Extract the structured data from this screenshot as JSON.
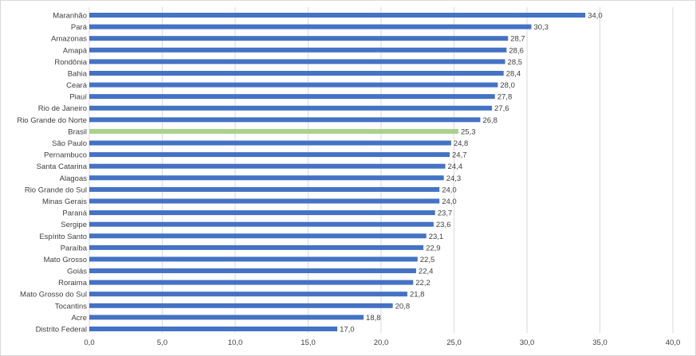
{
  "chart_data": {
    "type": "bar",
    "orientation": "horizontal",
    "categories": [
      "Maranhão",
      "Pará",
      "Amazonas",
      "Amapá",
      "Rondônia",
      "Bahia",
      "Ceará",
      "Piauí",
      "Rio de Janeiro",
      "Rio Grande do Norte",
      "Brasil",
      "São Paulo",
      "Pernambuco",
      "Santa Catarina",
      "Alagoas",
      "Rio Grande do Sul",
      "Minas Gerais",
      "Paraná",
      "Sergipe",
      "Espírito Santo",
      "Paraíba",
      "Mato Grosso",
      "Goiás",
      "Roraima",
      "Mato Grosso do Sul",
      "Tocantins",
      "Acre",
      "Distrito Federal"
    ],
    "values": [
      34.0,
      30.3,
      28.7,
      28.6,
      28.5,
      28.4,
      28.0,
      27.8,
      27.6,
      26.8,
      25.3,
      24.8,
      24.7,
      24.4,
      24.3,
      24.0,
      24.0,
      23.7,
      23.6,
      23.1,
      22.9,
      22.5,
      22.4,
      22.2,
      21.8,
      20.8,
      18.8,
      17.0
    ],
    "value_labels": [
      "34,0",
      "30,3",
      "28,7",
      "28,6",
      "28,5",
      "28,4",
      "28,0",
      "27,8",
      "27,6",
      "26,8",
      "25,3",
      "24,8",
      "24,7",
      "24,4",
      "24,3",
      "24,0",
      "24,0",
      "23,7",
      "23,6",
      "23,1",
      "22,9",
      "22,5",
      "22,4",
      "22,2",
      "21,8",
      "20,8",
      "18,8",
      "17,0"
    ],
    "highlight_category": "Brasil",
    "xlim": [
      0,
      40
    ],
    "x_ticks": [
      0,
      5,
      10,
      15,
      20,
      25,
      30,
      35,
      40
    ],
    "x_tick_labels": [
      "0,0",
      "5,0",
      "10,0",
      "15,0",
      "20,0",
      "25,0",
      "30,0",
      "35,0",
      "40,0"
    ],
    "grid": true,
    "legend": "none",
    "title": "",
    "xlabel": "",
    "ylabel": "",
    "colors": {
      "bar": "#4472c4",
      "highlight": "#a9d18e",
      "grid": "#d9d9d9"
    }
  }
}
